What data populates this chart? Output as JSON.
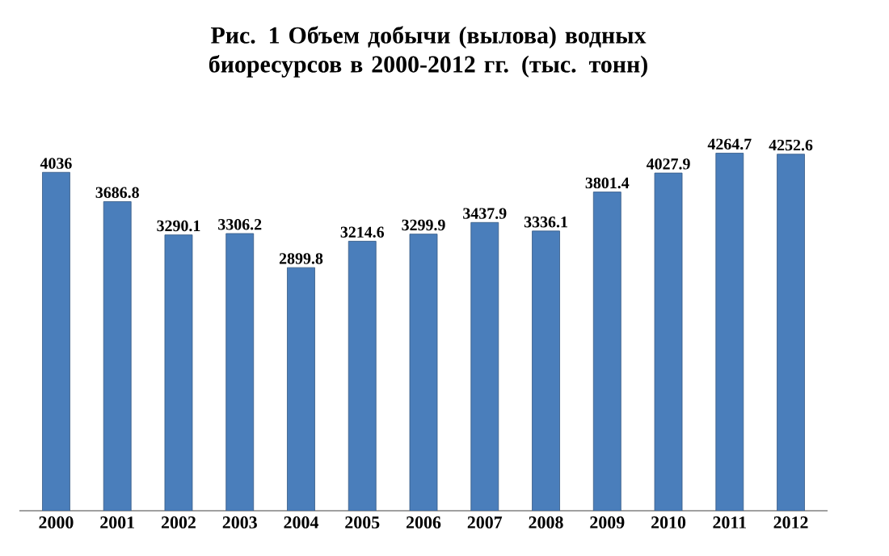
{
  "chart_data": {
    "type": "bar",
    "title": "Рис. 1 Объем добычи (вылова) водных биоресурсов в 2000-2012 гг. (тыс. тонн)",
    "categories": [
      "2000",
      "2001",
      "2002",
      "2003",
      "2004",
      "2005",
      "2006",
      "2007",
      "2008",
      "2009",
      "2010",
      "2011",
      "2012"
    ],
    "values": [
      4036,
      3686.8,
      3290.1,
      3306.2,
      2899.8,
      3214.6,
      3299.9,
      3437.9,
      3336.1,
      3801.4,
      4027.9,
      4264.7,
      4252.6
    ],
    "color": "#4a7ebb",
    "data_labels": true
  }
}
